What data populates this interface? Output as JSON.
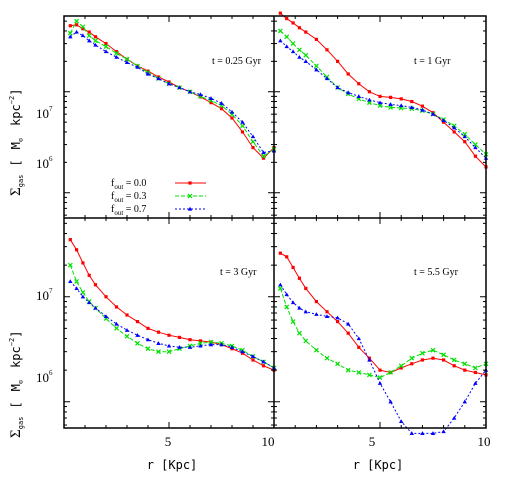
{
  "chart_data": {
    "type": "line",
    "x_label": "r  [Kpc]",
    "y_label": "Σgas  [  M⊙  kpc⁻²]",
    "y_label_parts": {
      "sigma": "Σ",
      "sub": "gas",
      "bracket_open": "[",
      "msun": "M",
      "sun_symbol": "⊙",
      "unit": "kpc",
      "exp": "−2",
      "bracket_close": "]"
    },
    "x_tick_labels": [
      "5",
      "10",
      "5",
      "10"
    ],
    "y_tick_labels": [
      {
        "base": "10",
        "exp": "7"
      },
      {
        "base": "10",
        "exp": "6"
      },
      {
        "base": "10",
        "exp": "7"
      },
      {
        "base": "10",
        "exp": "6"
      }
    ],
    "x_range": [
      0,
      10
    ],
    "y_range_log10": [
      5.75,
      7.75
    ],
    "y_log_scale": true,
    "legend": [
      {
        "label_main": "f",
        "label_sub": "out",
        "label_value": " = 0.0",
        "color": "#ff0000",
        "marker": "square"
      },
      {
        "label_main": "f",
        "label_sub": "out",
        "label_value": " = 0.3",
        "color": "#00e000",
        "marker": "x"
      },
      {
        "label_main": "f",
        "label_sub": "out",
        "label_value": " = 0.7",
        "color": "#0000ff",
        "marker": "triangle"
      }
    ],
    "panels": [
      {
        "annotation": "t = 0.25 Gyr",
        "series": [
          {
            "color": "#ff0000",
            "x": [
              0.3,
              0.6,
              0.9,
              1.2,
              1.5,
              2.0,
              2.5,
              3.0,
              3.5,
              4.0,
              4.5,
              5.0,
              5.5,
              6.0,
              6.5,
              7.0,
              7.5,
              8.0,
              8.5,
              9.0,
              9.5,
              10.0
            ],
            "y": [
              45000000.0,
              46000000.0,
              42000000.0,
              39000000.0,
              35000000.0,
              30000000.0,
              25000000.0,
              21000000.0,
              18000000.0,
              16000000.0,
              14000000.0,
              12500000.0,
              11000000.0,
              10000000.0,
              8900000.0,
              7800000.0,
              6800000.0,
              5500000.0,
              4000000.0,
              2800000.0,
              2200000.0,
              2800000.0
            ]
          },
          {
            "color": "#00e000",
            "x": [
              0.3,
              0.6,
              0.9,
              1.2,
              1.5,
              2.0,
              2.5,
              3.0,
              3.5,
              4.0,
              4.5,
              5.0,
              5.5,
              6.0,
              6.5,
              7.0,
              7.5,
              8.0,
              8.5,
              9.0,
              9.5,
              10.0
            ],
            "y": [
              38000000.0,
              50000000.0,
              44000000.0,
              36000000.0,
              32000000.0,
              28000000.0,
              24000000.0,
              21000000.0,
              18000000.0,
              15500000.0,
              13500000.0,
              12000000.0,
              11000000.0,
              10000000.0,
              9000000.0,
              8200000.0,
              7300000.0,
              6000000.0,
              4600000.0,
              3200000.0,
              2300000.0,
              2700000.0
            ]
          },
          {
            "color": "#0000ff",
            "x": [
              0.3,
              0.6,
              0.9,
              1.2,
              1.5,
              2.0,
              2.5,
              3.0,
              3.5,
              4.0,
              4.5,
              5.0,
              5.5,
              6.0,
              6.5,
              7.0,
              7.5,
              8.0,
              8.5,
              9.0,
              9.5,
              10.0
            ],
            "y": [
              35000000.0,
              39000000.0,
              36000000.0,
              32000000.0,
              29000000.0,
              25000000.0,
              22000000.0,
              19500000.0,
              17500000.0,
              15000000.0,
              13500000.0,
              12000000.0,
              11000000.0,
              10000000.0,
              9400000.0,
              8600000.0,
              7700000.0,
              6300000.0,
              5000000.0,
              3600000.0,
              2500000.0,
              2600000.0
            ]
          }
        ]
      },
      {
        "annotation": "t = 1 Gyr",
        "series": [
          {
            "color": "#ff0000",
            "x": [
              0.3,
              0.6,
              0.9,
              1.2,
              1.5,
              2.0,
              2.5,
              3.0,
              3.5,
              4.0,
              4.5,
              5.0,
              5.5,
              6.0,
              6.5,
              7.0,
              7.5,
              8.0,
              8.5,
              9.0,
              9.5,
              10.0
            ],
            "y": [
              60000000.0,
              53000000.0,
              48000000.0,
              43000000.0,
              39000000.0,
              33000000.0,
              26000000.0,
              20000000.0,
              15000000.0,
              12000000.0,
              10000000.0,
              9000000.0,
              8800000.0,
              8500000.0,
              8000000.0,
              7200000.0,
              6200000.0,
              5000000.0,
              4000000.0,
              3200000.0,
              2300000.0,
              1800000.0
            ]
          },
          {
            "color": "#00e000",
            "x": [
              0.3,
              0.6,
              0.9,
              1.2,
              1.5,
              2.0,
              2.5,
              3.0,
              3.5,
              4.0,
              4.5,
              5.0,
              5.5,
              6.0,
              6.5,
              7.0,
              7.5,
              8.0,
              8.5,
              9.0,
              9.5,
              10.0
            ],
            "y": [
              40000000.0,
              35000000.0,
              30000000.0,
              26000000.0,
              23000000.0,
              18000000.0,
              14000000.0,
              11000000.0,
              9500000.0,
              8500000.0,
              7800000.0,
              7300000.0,
              7000000.0,
              6900000.0,
              6800000.0,
              6500000.0,
              6000000.0,
              5300000.0,
              4600000.0,
              3800000.0,
              3000000.0,
              2400000.0
            ]
          },
          {
            "color": "#0000ff",
            "x": [
              0.3,
              0.6,
              0.9,
              1.2,
              1.5,
              2.0,
              2.5,
              3.0,
              3.5,
              4.0,
              4.5,
              5.0,
              5.5,
              6.0,
              6.5,
              7.0,
              7.5,
              8.0,
              8.5,
              9.0,
              9.5,
              10.0
            ],
            "y": [
              32000000.0,
              28000000.0,
              25000000.0,
              22000000.0,
              20000000.0,
              16500000.0,
              13500000.0,
              11000000.0,
              9800000.0,
              9000000.0,
              8300000.0,
              7800000.0,
              7500000.0,
              7300000.0,
              7000000.0,
              6600000.0,
              6000000.0,
              5200000.0,
              4400000.0,
              3600000.0,
              2800000.0,
              2200000.0
            ]
          }
        ]
      },
      {
        "annotation": "t = 3 Gyr",
        "series": [
          {
            "color": "#ff0000",
            "x": [
              0.3,
              0.6,
              0.9,
              1.2,
              1.5,
              2.0,
              2.5,
              3.0,
              3.5,
              4.0,
              4.5,
              5.0,
              5.5,
              6.0,
              6.5,
              7.0,
              7.5,
              8.0,
              8.5,
              9.0,
              9.5,
              10.0
            ],
            "y": [
              35000000.0,
              28000000.0,
              21000000.0,
              16000000.0,
              13000000.0,
              10000000.0,
              8000000.0,
              6700000.0,
              5800000.0,
              5000000.0,
              4600000.0,
              4300000.0,
              4100000.0,
              3900000.0,
              3800000.0,
              3700000.0,
              3500000.0,
              3200000.0,
              2900000.0,
              2500000.0,
              2200000.0,
              2000000.0
            ]
          },
          {
            "color": "#00e000",
            "x": [
              0.3,
              0.6,
              0.9,
              1.2,
              1.5,
              2.0,
              2.5,
              3.0,
              3.5,
              4.0,
              4.5,
              5.0,
              5.5,
              6.0,
              6.5,
              7.0,
              7.5,
              8.0,
              8.5,
              9.0,
              9.5,
              10.0
            ],
            "y": [
              20000000.0,
              14000000.0,
              11000000.0,
              9000000.0,
              7800000.0,
              6200000.0,
              5000000.0,
              4200000.0,
              3600000.0,
              3200000.0,
              3000000.0,
              3000000.0,
              3200000.0,
              3400000.0,
              3600000.0,
              3700000.0,
              3600000.0,
              3400000.0,
              3100000.0,
              2700000.0,
              2400000.0,
              2100000.0
            ]
          },
          {
            "color": "#0000ff",
            "x": [
              0.3,
              0.6,
              0.9,
              1.2,
              1.5,
              2.0,
              2.5,
              3.0,
              3.5,
              4.0,
              4.5,
              5.0,
              5.5,
              6.0,
              6.5,
              7.0,
              7.5,
              8.0,
              8.5,
              9.0,
              9.5,
              10.0
            ],
            "y": [
              14000000.0,
              12000000.0,
              10000000.0,
              8800000.0,
              7800000.0,
              6500000.0,
              5500000.0,
              4800000.0,
              4300000.0,
              3900000.0,
              3600000.0,
              3400000.0,
              3300000.0,
              3300000.0,
              3400000.0,
              3500000.0,
              3500000.0,
              3300000.0,
              3000000.0,
              2700000.0,
              2400000.0,
              2100000.0
            ]
          }
        ]
      },
      {
        "annotation": "t = 5.5 Gyr",
        "series": [
          {
            "color": "#ff0000",
            "x": [
              0.3,
              0.6,
              0.9,
              1.2,
              1.5,
              2.0,
              2.5,
              3.0,
              3.5,
              4.0,
              4.5,
              5.0,
              5.5,
              6.0,
              6.5,
              7.0,
              7.5,
              8.0,
              8.5,
              9.0,
              9.5,
              10.0
            ],
            "y": [
              26000000.0,
              24000000.0,
              19000000.0,
              15000000.0,
              12000000.0,
              9000000.0,
              7200000.0,
              5800000.0,
              4500000.0,
              3300000.0,
              2600000.0,
              2000000.0,
              1900000.0,
              2100000.0,
              2300000.0,
              2500000.0,
              2600000.0,
              2500000.0,
              2200000.0,
              2000000.0,
              1900000.0,
              1800000.0
            ]
          },
          {
            "color": "#00e000",
            "x": [
              0.3,
              0.6,
              0.9,
              1.2,
              1.5,
              2.0,
              2.5,
              3.0,
              3.5,
              4.0,
              4.5,
              5.0,
              5.5,
              6.0,
              6.5,
              7.0,
              7.5,
              8.0,
              8.5,
              9.0,
              9.5,
              10.0
            ],
            "y": [
              12000000.0,
              8000000.0,
              5800000.0,
              4500000.0,
              3800000.0,
              3100000.0,
              2600000.0,
              2300000.0,
              2000000.0,
              1900000.0,
              1800000.0,
              1700000.0,
              1900000.0,
              2200000.0,
              2600000.0,
              2900000.0,
              3100000.0,
              2800000.0,
              2500000.0,
              2300000.0,
              2100000.0,
              2300000.0
            ]
          },
          {
            "color": "#0000ff",
            "x": [
              0.3,
              0.6,
              0.9,
              1.2,
              1.5,
              2.0,
              2.5,
              3.0,
              3.5,
              4.0,
              4.5,
              5.0,
              5.5,
              6.0,
              6.5,
              7.0,
              7.5,
              8.0,
              8.5,
              9.0,
              9.5,
              10.0
            ],
            "y": [
              13000000.0,
              10500000.0,
              8800000.0,
              7800000.0,
              7200000.0,
              6800000.0,
              6500000.0,
              6300000.0,
              5500000.0,
              4000000.0,
              2500000.0,
              1500000.0,
              1000000.0,
              650000.0,
              500000.0,
              500000.0,
              500000.0,
              520000.0,
              700000.0,
              1000000.0,
              1500000.0,
              2000000.0
            ]
          }
        ]
      }
    ]
  }
}
